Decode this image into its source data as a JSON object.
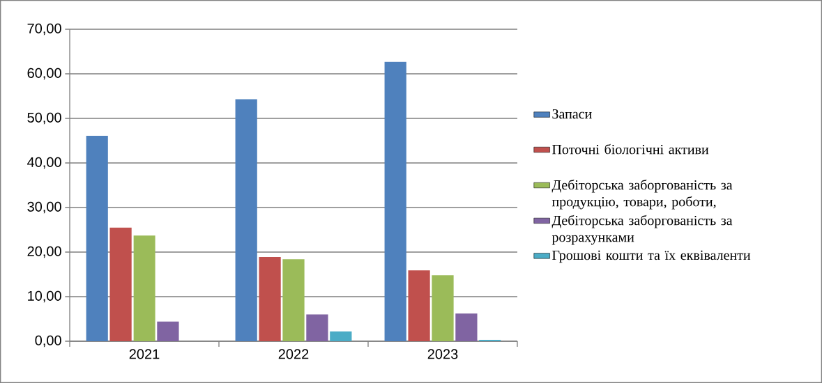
{
  "chart_data": {
    "type": "bar",
    "categories": [
      "2021",
      "2022",
      "2023"
    ],
    "series": [
      {
        "name": "Запаси",
        "color": "#4f81bd",
        "values": [
          46.1,
          54.3,
          62.7
        ]
      },
      {
        "name": "Поточні біологічні активи",
        "color": "#c0504d",
        "values": [
          25.5,
          18.9,
          15.9
        ]
      },
      {
        "name": "Дебіторська заборгованість за продукцію, товари, роботи,",
        "color": "#9bbb59",
        "values": [
          23.7,
          18.4,
          14.8
        ]
      },
      {
        "name": "Дебіторська заборгованість за розрахунками",
        "color": "#8064a2",
        "values": [
          4.4,
          6.0,
          6.2
        ]
      },
      {
        "name": "Грошові кошти та їх еквіваленти",
        "color": "#4bacc6",
        "values": [
          0,
          2.2,
          0.3
        ]
      }
    ],
    "ylim": [
      0,
      70
    ],
    "yticks": [
      {
        "value": 0,
        "label": "0,00"
      },
      {
        "value": 10,
        "label": "10,00"
      },
      {
        "value": 20,
        "label": "20,00"
      },
      {
        "value": 30,
        "label": "30,00"
      },
      {
        "value": 40,
        "label": "40,00"
      },
      {
        "value": 50,
        "label": "50,00"
      },
      {
        "value": 60,
        "label": "60,00"
      },
      {
        "value": 70,
        "label": "70,00"
      }
    ],
    "grid": "y",
    "legend": "right"
  }
}
